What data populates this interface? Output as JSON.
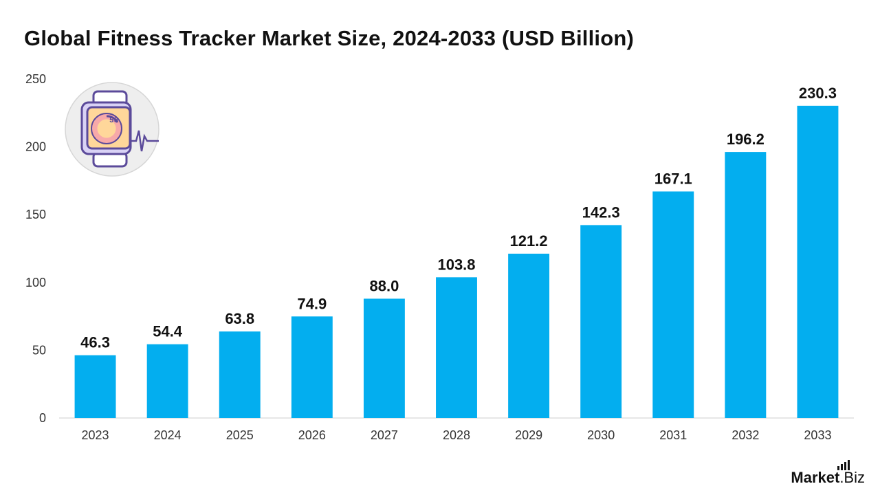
{
  "chart_data": {
    "type": "bar",
    "title": "Global Fitness Tracker Market Size, 2024-2033 (USD Billion)",
    "categories": [
      "2023",
      "2024",
      "2025",
      "2026",
      "2027",
      "2028",
      "2029",
      "2030",
      "2031",
      "2032",
      "2033"
    ],
    "values": [
      46.3,
      54.4,
      63.8,
      74.9,
      88.0,
      103.8,
      121.2,
      142.3,
      167.1,
      196.2,
      230.3
    ],
    "value_labels": [
      "46.3",
      "54.4",
      "63.8",
      "74.9",
      "88.0",
      "103.8",
      "121.2",
      "142.3",
      "167.1",
      "196.2",
      "230.3"
    ],
    "yticks": [
      0,
      50,
      100,
      150,
      200,
      250
    ],
    "ylim": [
      0,
      250
    ],
    "xlabel": "",
    "ylabel": "",
    "grid": false,
    "bar_color": "#03AEEF"
  },
  "illustration": {
    "icon": "smartwatch-heartbeat-icon",
    "watch_display": "58"
  },
  "brand": {
    "part1": "Market",
    "part2": ".Biz"
  }
}
